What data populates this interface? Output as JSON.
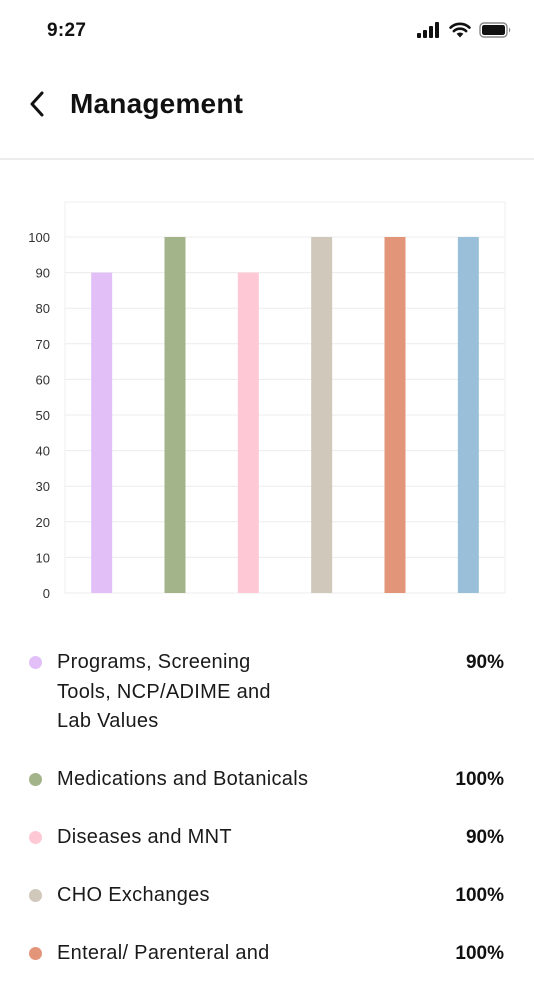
{
  "status_bar": {
    "time": "9:27"
  },
  "header": {
    "title": "Management"
  },
  "chart_data": {
    "type": "bar",
    "categories": [
      "Programs, Screening Tools, NCP/ADIME and Lab Values",
      "Medications and Botanicals",
      "Diseases and MNT",
      "CHO Exchanges",
      "Enteral/ Parenteral and",
      ""
    ],
    "values": [
      90,
      100,
      90,
      100,
      100,
      100
    ],
    "colors": [
      "#e2c0f7",
      "#a3b38a",
      "#ffc8d5",
      "#d0c8bb",
      "#e3957a",
      "#99c0d8"
    ],
    "ylim": [
      0,
      100
    ],
    "yticks": [
      0,
      10,
      20,
      30,
      40,
      50,
      60,
      70,
      80,
      90,
      100
    ],
    "grid": true,
    "legend": "bottom"
  },
  "legend_items": [
    {
      "label": "Programs, Screening Tools, NCP/ADIME and Lab Values",
      "value": "90%",
      "color": "#e2c0f7"
    },
    {
      "label": "Medications and Botanicals",
      "value": "100%",
      "color": "#a3b38a"
    },
    {
      "label": "Diseases and MNT",
      "value": "90%",
      "color": "#ffc8d5"
    },
    {
      "label": "CHO Exchanges",
      "value": "100%",
      "color": "#d0c8bb"
    },
    {
      "label": "Enteral/ Parenteral and",
      "value": "100%",
      "color": "#e3957a"
    }
  ]
}
